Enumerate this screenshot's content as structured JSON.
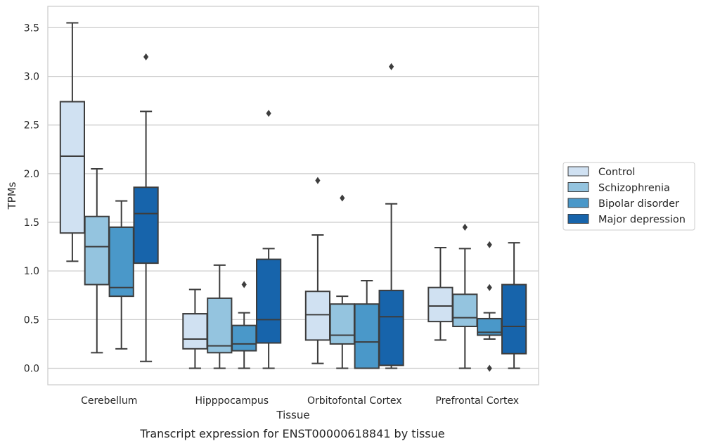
{
  "chart_data": {
    "type": "boxplot",
    "xlabel": "Tissue",
    "ylabel": "TPMs",
    "caption": "Transcript expression for ENST00000618841 by tissue",
    "ylim": [
      -0.17,
      3.72
    ],
    "yticks": [
      0.0,
      0.5,
      1.0,
      1.5,
      2.0,
      2.5,
      3.0,
      3.5
    ],
    "ytick_labels": [
      "0.0",
      "0.5",
      "1.0",
      "1.5",
      "2.0",
      "2.5",
      "3.0",
      "3.5"
    ],
    "grid": "horizontal",
    "legend_position": "right-outside",
    "categories": [
      "Cerebellum",
      "Hipppocampus",
      "Orbitofontal Cortex",
      "Prefrontal Cortex"
    ],
    "series": [
      {
        "name": "Control",
        "color": "#d0e1f2",
        "boxes": [
          {
            "whislo": 1.1,
            "q1": 1.39,
            "med": 2.18,
            "q3": 2.74,
            "whishi": 3.55,
            "fliers": []
          },
          {
            "whislo": 0.0,
            "q1": 0.2,
            "med": 0.3,
            "q3": 0.56,
            "whishi": 0.81,
            "fliers": []
          },
          {
            "whislo": 0.05,
            "q1": 0.29,
            "med": 0.55,
            "q3": 0.79,
            "whishi": 1.37,
            "fliers": [
              1.93
            ]
          },
          {
            "whislo": 0.29,
            "q1": 0.48,
            "med": 0.64,
            "q3": 0.83,
            "whishi": 1.24,
            "fliers": []
          }
        ]
      },
      {
        "name": "Schizophrenia",
        "color": "#94c4df",
        "boxes": [
          {
            "whislo": 0.16,
            "q1": 0.86,
            "med": 1.25,
            "q3": 1.56,
            "whishi": 2.05,
            "fliers": []
          },
          {
            "whislo": 0.0,
            "q1": 0.16,
            "med": 0.23,
            "q3": 0.72,
            "whishi": 1.06,
            "fliers": []
          },
          {
            "whislo": 0.0,
            "q1": 0.25,
            "med": 0.34,
            "q3": 0.66,
            "whishi": 0.74,
            "fliers": [
              1.75
            ]
          },
          {
            "whislo": 0.0,
            "q1": 0.43,
            "med": 0.52,
            "q3": 0.76,
            "whishi": 1.23,
            "fliers": [
              1.45
            ]
          }
        ]
      },
      {
        "name": "Bipolar disorder",
        "color": "#4a98c9",
        "boxes": [
          {
            "whislo": 0.2,
            "q1": 0.74,
            "med": 0.83,
            "q3": 1.45,
            "whishi": 1.72,
            "fliers": []
          },
          {
            "whislo": 0.0,
            "q1": 0.18,
            "med": 0.25,
            "q3": 0.44,
            "whishi": 0.57,
            "fliers": [
              0.86
            ]
          },
          {
            "whislo": 0.0,
            "q1": 0.0,
            "med": 0.27,
            "q3": 0.66,
            "whishi": 0.9,
            "fliers": []
          },
          {
            "whislo": 0.3,
            "q1": 0.34,
            "med": 0.37,
            "q3": 0.51,
            "whishi": 0.57,
            "fliers": [
              0.83,
              1.27,
              0.0
            ]
          }
        ]
      },
      {
        "name": "Major depression",
        "color": "#1764ab",
        "boxes": [
          {
            "whislo": 0.07,
            "q1": 1.08,
            "med": 1.59,
            "q3": 1.86,
            "whishi": 2.64,
            "fliers": [
              3.2
            ]
          },
          {
            "whislo": 0.0,
            "q1": 0.26,
            "med": 0.5,
            "q3": 1.12,
            "whishi": 1.23,
            "fliers": [
              2.62
            ]
          },
          {
            "whislo": 0.0,
            "q1": 0.03,
            "med": 0.53,
            "q3": 0.8,
            "whishi": 1.69,
            "fliers": [
              3.1
            ]
          },
          {
            "whislo": 0.0,
            "q1": 0.15,
            "med": 0.43,
            "q3": 0.86,
            "whishi": 1.29,
            "fliers": []
          }
        ]
      }
    ]
  }
}
